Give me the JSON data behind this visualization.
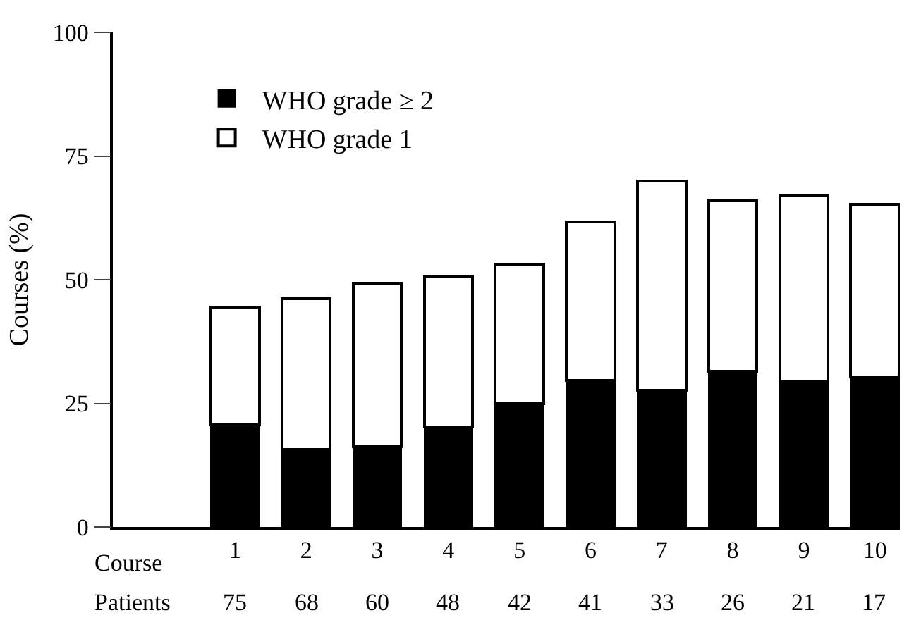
{
  "chart_data": {
    "type": "bar",
    "stacked": true,
    "categories": [
      "1",
      "2",
      "3",
      "4",
      "5",
      "6",
      "7",
      "8",
      "9",
      "10"
    ],
    "xlabel": "Course",
    "ylabel": "Courses (%)",
    "series": [
      {
        "name": "WHO grade ≥ 2",
        "color": "#000000",
        "values": [
          20.7,
          15.7,
          16.2,
          20.3,
          25.0,
          29.6,
          27.7,
          31.5,
          29.4,
          30.4
        ]
      },
      {
        "name": "WHO grade 1",
        "color": "#ffffff",
        "values": [
          23.7,
          30.5,
          33.1,
          30.4,
          28.1,
          32.1,
          42.3,
          34.4,
          37.6,
          34.8
        ]
      }
    ],
    "annotations": [
      "Patients",
      "75",
      "68",
      "60",
      "48",
      "42",
      "41",
      "33",
      "26",
      "21",
      "17"
    ],
    "ylim": [
      0,
      100
    ],
    "yticks": [
      0,
      25,
      50,
      75,
      100
    ],
    "legend": "top left"
  }
}
